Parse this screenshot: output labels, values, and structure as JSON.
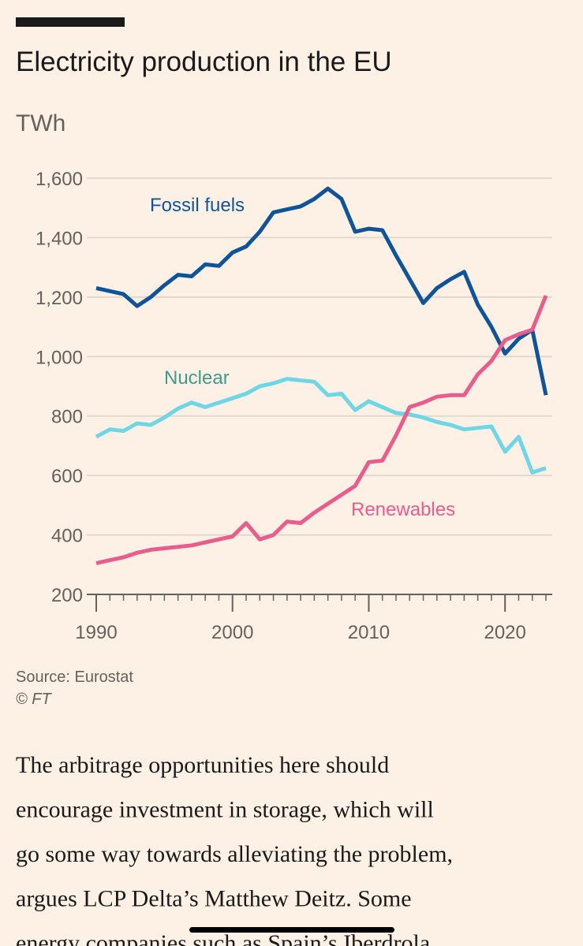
{
  "chart_data": {
    "type": "line",
    "title": "Electricity production in the EU",
    "y_label": "TWh",
    "x": [
      1990,
      1991,
      1992,
      1993,
      1994,
      1995,
      1996,
      1997,
      1998,
      1999,
      2000,
      2001,
      2002,
      2003,
      2004,
      2005,
      2006,
      2007,
      2008,
      2009,
      2010,
      2011,
      2012,
      2013,
      2014,
      2015,
      2016,
      2017,
      2018,
      2019,
      2020,
      2021,
      2022,
      2023
    ],
    "series": [
      {
        "name": "Fossil fuels",
        "color": "#0f5499",
        "label_color": "#0f5499",
        "values": [
          1230,
          1220,
          1210,
          1170,
          1200,
          1240,
          1275,
          1270,
          1310,
          1305,
          1350,
          1370,
          1420,
          1485,
          1495,
          1505,
          1530,
          1565,
          1530,
          1420,
          1430,
          1425,
          1340,
          1260,
          1180,
          1230,
          1260,
          1285,
          1175,
          1100,
          1010,
          1060,
          1090,
          870
        ]
      },
      {
        "name": "Nuclear",
        "color": "#6fd6e6",
        "label_color": "#3f9b8c",
        "values": [
          730,
          755,
          750,
          775,
          770,
          795,
          825,
          845,
          830,
          845,
          860,
          875,
          900,
          910,
          925,
          920,
          915,
          870,
          875,
          820,
          850,
          830,
          810,
          805,
          795,
          780,
          770,
          755,
          760,
          765,
          680,
          730,
          610,
          625
        ]
      },
      {
        "name": "Renewables",
        "color": "#e95d8c",
        "label_color": "#e95d8c",
        "values": [
          305,
          315,
          325,
          340,
          350,
          355,
          360,
          365,
          375,
          385,
          395,
          440,
          385,
          400,
          445,
          440,
          475,
          505,
          535,
          565,
          645,
          650,
          735,
          830,
          845,
          865,
          870,
          870,
          940,
          985,
          1055,
          1075,
          1090,
          1205
        ]
      }
    ],
    "xlim": [
      1990,
      2023
    ],
    "xticks": [
      1990,
      2000,
      2010,
      2020
    ],
    "ylim": [
      200,
      1600
    ],
    "yticks": [
      {
        "value": 200,
        "label": "200"
      },
      {
        "value": 400,
        "label": "400"
      },
      {
        "value": 600,
        "label": "600"
      },
      {
        "value": 800,
        "label": "800"
      },
      {
        "value": 1000,
        "label": "1,000"
      },
      {
        "value": 1200,
        "label": "1,200"
      },
      {
        "value": 1400,
        "label": "1,400"
      },
      {
        "value": 1600,
        "label": "1,600"
      }
    ],
    "grid": true,
    "source": "Source: Eurostat",
    "credit": "© FT"
  },
  "article": {
    "lines": [
      "The arbitrage opportunities here should",
      "encourage investment in storage, which will",
      "go some way towards alleviating the problem,",
      "argues LCP Delta’s Matthew Deitz. Some",
      "energy companies such as Spain’s Iberdrola"
    ]
  }
}
